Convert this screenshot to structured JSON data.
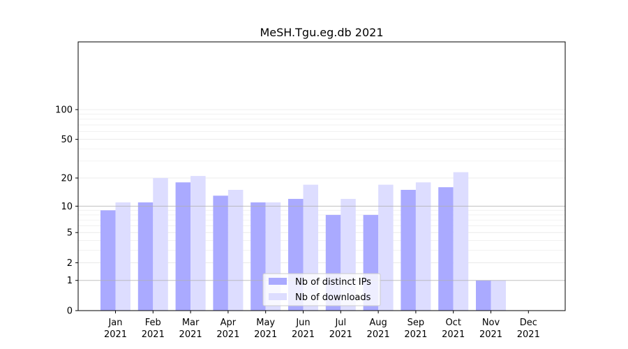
{
  "chart_data": {
    "type": "bar",
    "title": "MeSH.Tgu.eg.db 2021",
    "xlabel": "",
    "ylabel": "",
    "y_scale": "log(1+y)",
    "ylim": [
      0,
      110
    ],
    "yticks": [
      0,
      1,
      2,
      5,
      10,
      20,
      50,
      100
    ],
    "categories": [
      {
        "month": "Jan",
        "year": "2021"
      },
      {
        "month": "Feb",
        "year": "2021"
      },
      {
        "month": "Mar",
        "year": "2021"
      },
      {
        "month": "Apr",
        "year": "2021"
      },
      {
        "month": "May",
        "year": "2021"
      },
      {
        "month": "Jun",
        "year": "2021"
      },
      {
        "month": "Jul",
        "year": "2021"
      },
      {
        "month": "Aug",
        "year": "2021"
      },
      {
        "month": "Sep",
        "year": "2021"
      },
      {
        "month": "Oct",
        "year": "2021"
      },
      {
        "month": "Nov",
        "year": "2021"
      },
      {
        "month": "Dec",
        "year": "2021"
      }
    ],
    "series": [
      {
        "name": "Nb of distinct IPs",
        "color": "#aaaaff",
        "values": [
          9,
          11,
          18,
          13,
          11,
          12,
          8,
          8,
          15,
          16,
          1,
          0
        ]
      },
      {
        "name": "Nb of downloads",
        "color": "#ddddff",
        "values": [
          11,
          20,
          21,
          15,
          11,
          17,
          12,
          17,
          18,
          23,
          1,
          0
        ]
      }
    ],
    "legend_position": "lower-center",
    "grid": true
  }
}
